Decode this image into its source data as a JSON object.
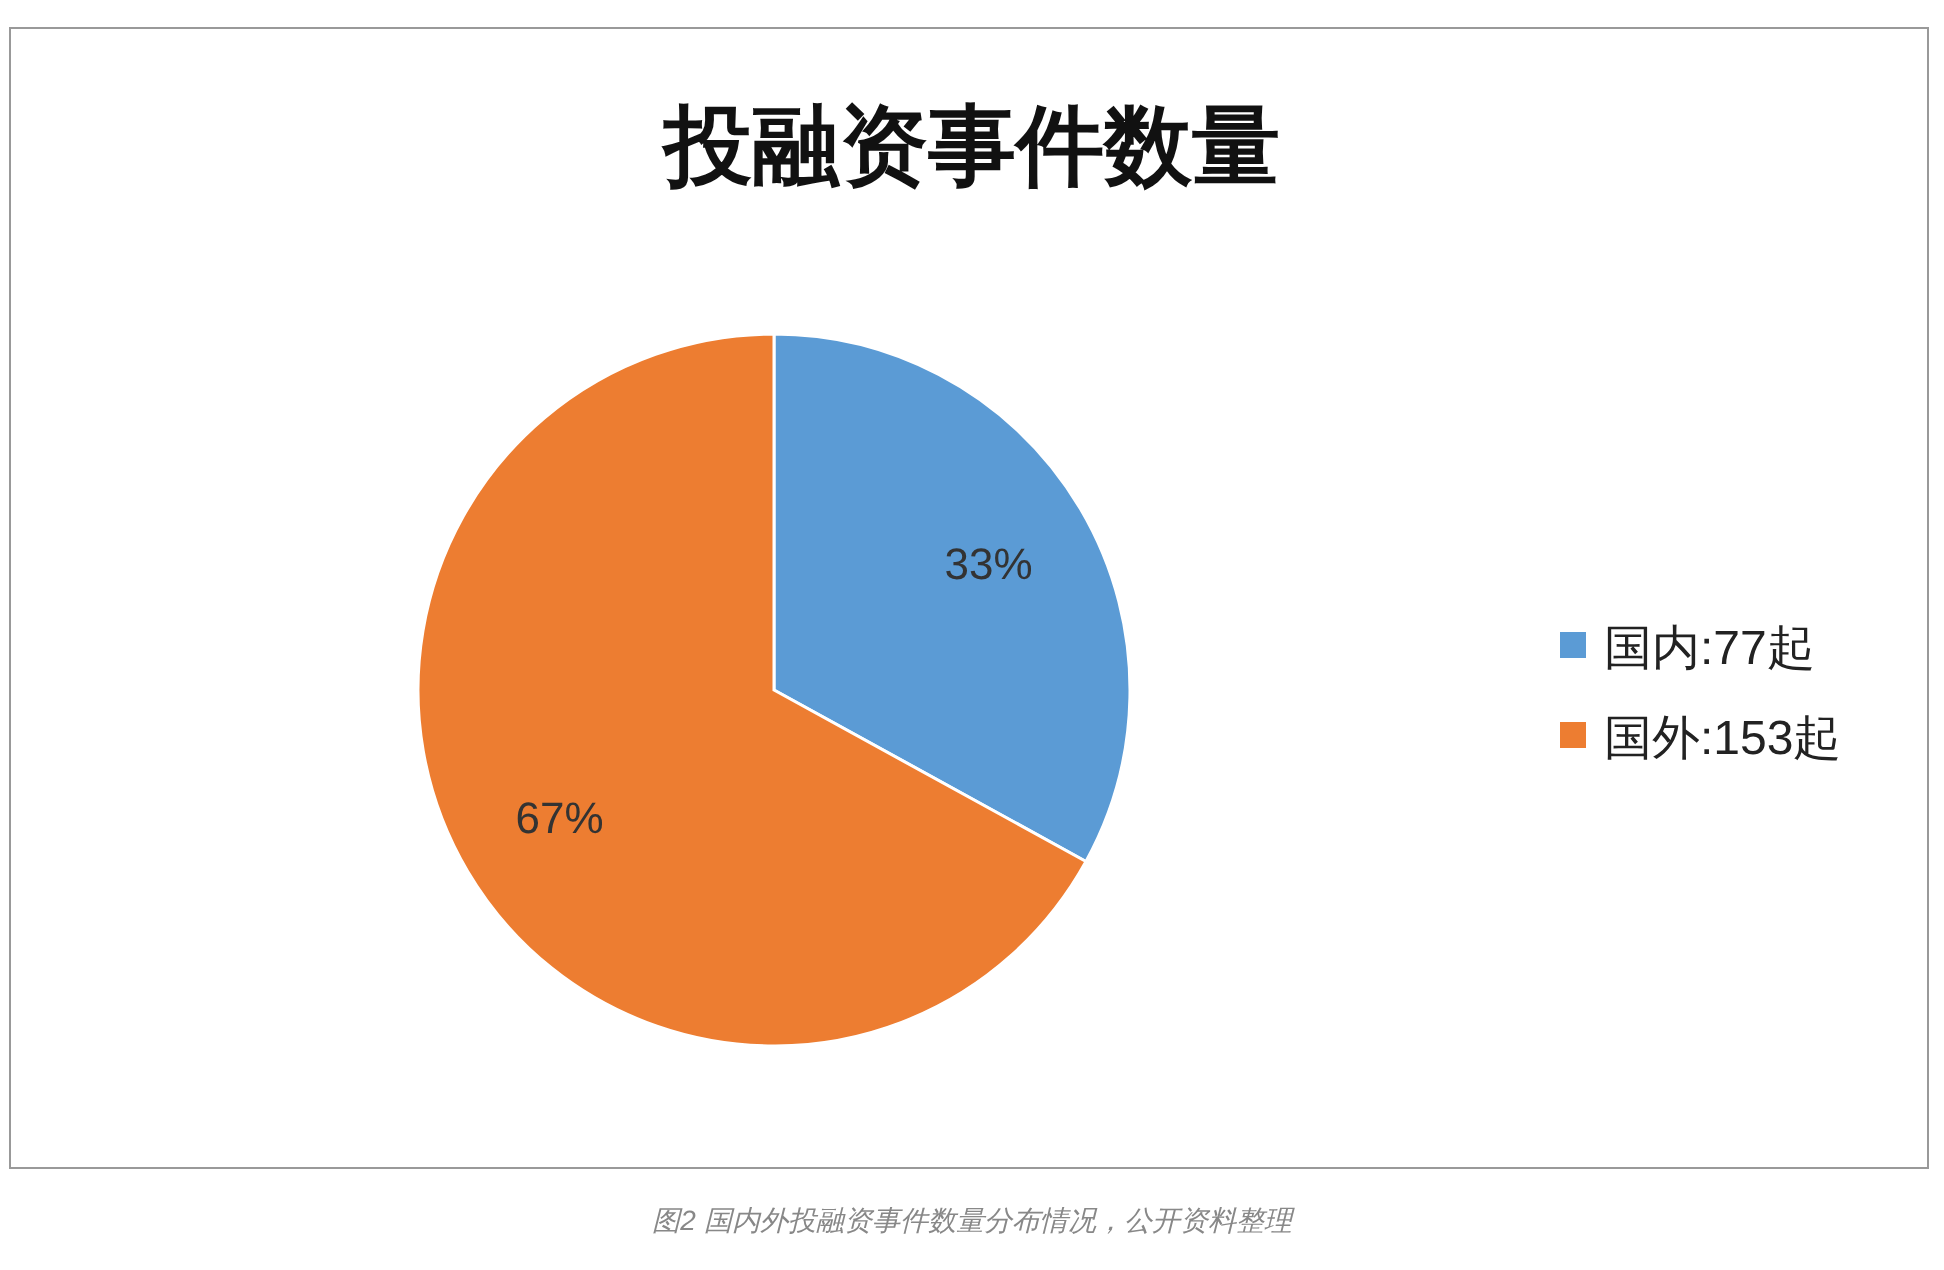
{
  "chart_data": {
    "type": "pie",
    "title": "投融资事件数量",
    "categories": [
      "国内:77起",
      "国外:153起"
    ],
    "values": [
      33,
      67
    ],
    "value_labels": [
      "33%",
      "67%"
    ],
    "colors": [
      "#5b9bd5",
      "#ed7d31"
    ],
    "legend": "right",
    "annotations": [
      "图2 国内外投融资事件数量分布情况，公开资料整理"
    ]
  }
}
